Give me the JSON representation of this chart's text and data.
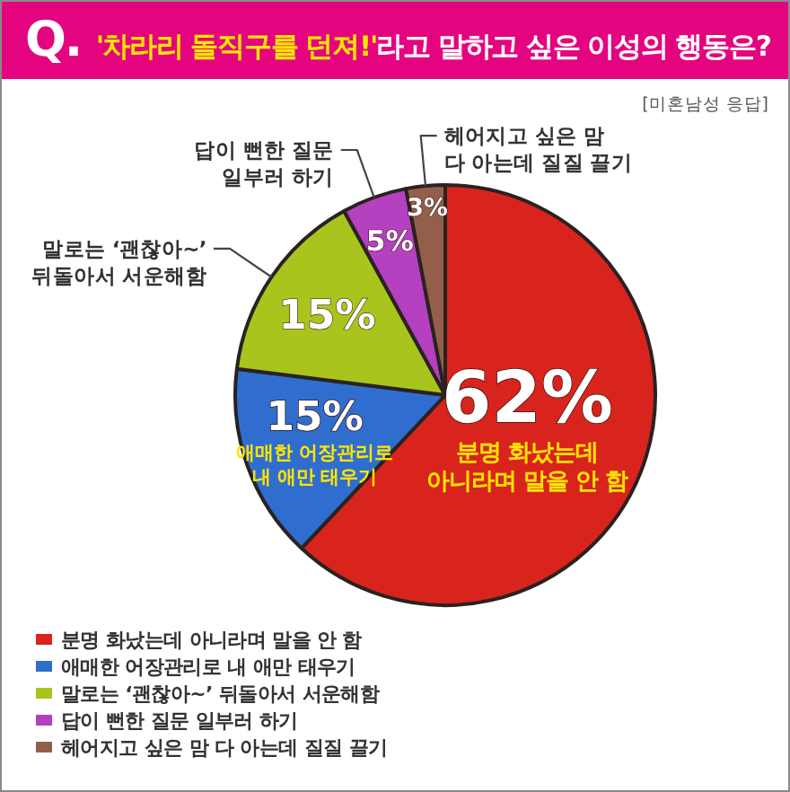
{
  "chart_data": {
    "type": "pie",
    "title": "Q. **'차라리 돌직구를 던져!'**라고 말하고 싶은 이성의 행동은?",
    "subtitle": "[미혼남성 응답]",
    "categories": [
      "분명 화났는데 아니라며 말을 안 함",
      "애매한 어장관리로 내 애만 태우기",
      "말로는 ‘괜찮아~’ 뒤돌아서 서운해함",
      "답이 뻔한 질문 일부러 하기",
      "헤어지고 싶은 맘 다 아는데 질질 끌기"
    ],
    "values": [
      62,
      15,
      15,
      5,
      3
    ],
    "colors": [
      "#d9231d",
      "#2f6ecf",
      "#a9c41d",
      "#b540c0",
      "#935f4a"
    ],
    "value_labels": [
      "62%",
      "15%",
      "15%",
      "5%",
      "3%"
    ],
    "legend": "bottom"
  }
}
